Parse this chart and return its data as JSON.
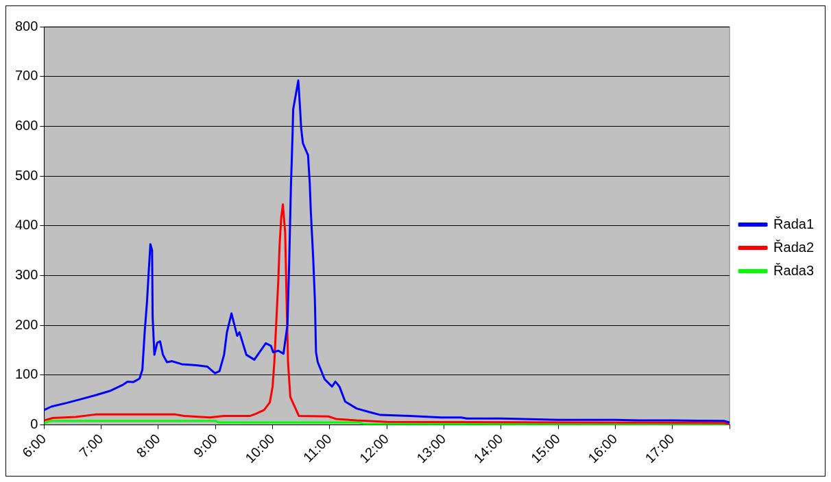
{
  "chart_data": {
    "type": "line",
    "xlim": [
      6,
      18
    ],
    "xticks": [
      {
        "value": 6,
        "label": "6:00"
      },
      {
        "value": 7,
        "label": "7:00"
      },
      {
        "value": 8,
        "label": "8:00"
      },
      {
        "value": 9,
        "label": "9:00"
      },
      {
        "value": 10,
        "label": "10:00"
      },
      {
        "value": 11,
        "label": "11:00"
      },
      {
        "value": 12,
        "label": "12:00"
      },
      {
        "value": 13,
        "label": "13:00"
      },
      {
        "value": 14,
        "label": "14:00"
      },
      {
        "value": 15,
        "label": "15:00"
      },
      {
        "value": 16,
        "label": "16:00"
      },
      {
        "value": 17,
        "label": "17:00"
      },
      {
        "value": 18,
        "label": null
      }
    ],
    "ylim": [
      0,
      800
    ],
    "yticks": [
      0,
      100,
      200,
      300,
      400,
      500,
      600,
      700,
      800
    ],
    "grid": "y",
    "legend": "right",
    "marker": "none",
    "line_style": "solid",
    "series": [
      {
        "name": "Řada1",
        "color": "#0000ff",
        "x": [
          6.0,
          6.13,
          6.39,
          6.65,
          6.91,
          7.17,
          7.37,
          7.46,
          7.56,
          7.67,
          7.72,
          7.76,
          7.8,
          7.83,
          7.86,
          7.89,
          7.9,
          7.93,
          7.98,
          8.03,
          8.08,
          8.15,
          8.24,
          8.41,
          8.67,
          8.86,
          8.99,
          9.07,
          9.15,
          9.2,
          9.28,
          9.38,
          9.42,
          9.54,
          9.68,
          9.88,
          9.97,
          10.01,
          10.1,
          10.19,
          10.26,
          10.29,
          10.32,
          10.35,
          10.36,
          10.45,
          10.48,
          10.5,
          10.53,
          10.62,
          10.65,
          10.67,
          10.71,
          10.74,
          10.76,
          10.79,
          10.91,
          11.04,
          11.1,
          11.17,
          11.27,
          11.47,
          11.69,
          11.89,
          12.4,
          12.95,
          13.3,
          13.4,
          14.0,
          15.0,
          16.0,
          16.4,
          17.0,
          17.9,
          18.0
        ],
        "values": [
          30,
          37,
          44,
          52,
          60,
          69,
          80,
          87,
          86,
          93,
          111,
          186,
          246,
          306,
          363,
          351,
          216,
          141,
          165,
          168,
          141,
          126,
          128,
          122,
          120,
          117,
          104,
          108,
          141,
          186,
          224,
          179,
          186,
          141,
          131,
          164,
          159,
          146,
          149,
          143,
          201,
          326,
          476,
          587,
          634,
          692,
          637,
          596,
          566,
          542,
          486,
          426,
          336,
          251,
          146,
          126,
          92,
          77,
          87,
          77,
          47,
          33,
          26,
          20,
          18,
          15,
          15,
          13,
          13,
          10,
          10,
          9,
          9,
          8,
          5
        ]
      },
      {
        "name": "Řada2",
        "color": "#ff0000",
        "x": [
          6.0,
          6.15,
          6.55,
          6.9,
          8.3,
          8.45,
          8.9,
          9.15,
          9.6,
          9.7,
          9.85,
          9.95,
          10.0,
          10.03,
          10.1,
          10.12,
          10.15,
          10.18,
          10.22,
          10.24,
          10.27,
          10.31,
          10.46,
          10.98,
          11.11,
          11.47,
          12.0,
          15.0,
          17.9,
          18.0
        ],
        "values": [
          9,
          14,
          16,
          21,
          21,
          18,
          15,
          18,
          18,
          22,
          30,
          45,
          77,
          126,
          291,
          356,
          416,
          443,
          386,
          276,
          126,
          56,
          18,
          17,
          12,
          9,
          6,
          5,
          4,
          2
        ]
      },
      {
        "name": "Řada3",
        "color": "#00ff00",
        "x": [
          6.0,
          6.1,
          9.0,
          9.05,
          11.5,
          11.6,
          18.0
        ],
        "values": [
          3,
          8,
          8,
          5,
          5,
          2,
          1
        ]
      }
    ]
  }
}
